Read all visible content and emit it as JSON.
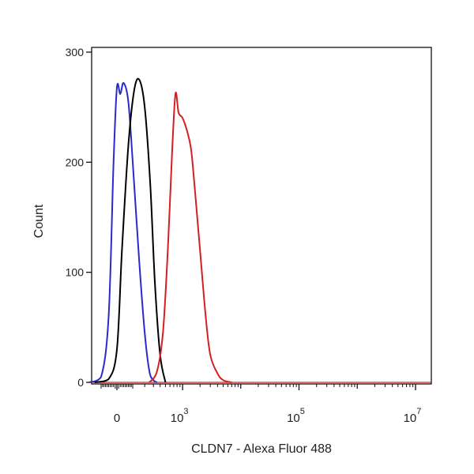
{
  "chart_data": {
    "type": "line",
    "title": "",
    "xlabel": "CLDN7 - Alexa Fluor 488",
    "ylabel": "Count",
    "xscale": "biexponential (log with linear region near 0)",
    "ylim": [
      0,
      300
    ],
    "y_ticks": [
      {
        "value": 0,
        "label": "0"
      },
      {
        "value": 100,
        "label": "100"
      },
      {
        "value": 200,
        "label": "200"
      },
      {
        "value": 300,
        "label": "300"
      }
    ],
    "x_ticks": [
      {
        "value": 0,
        "base": "0",
        "exp": ""
      },
      {
        "value": 1000,
        "base": "10",
        "exp": "3"
      },
      {
        "value": 100000,
        "base": "10",
        "exp": "5"
      },
      {
        "value": 10000000,
        "base": "10",
        "exp": "7"
      }
    ],
    "grid": false,
    "legend": "none",
    "series": [
      {
        "color": "#2a2acf",
        "x": [
          -200,
          -100,
          -50,
          -20,
          0,
          20,
          40,
          70,
          100,
          150,
          200,
          250,
          300,
          350
        ],
        "y": [
          0,
          5,
          60,
          200,
          268,
          262,
          272,
          255,
          200,
          110,
          45,
          10,
          2,
          0
        ]
      },
      {
        "color": "#000000",
        "x": [
          -150,
          -50,
          0,
          30,
          70,
          110,
          150,
          200,
          260,
          320,
          400,
          500
        ],
        "y": [
          0,
          3,
          30,
          120,
          215,
          265,
          275,
          250,
          180,
          90,
          25,
          0
        ]
      },
      {
        "color": "#d42020",
        "x": [
          250,
          350,
          450,
          550,
          650,
          750,
          850,
          1000,
          1200,
          1400,
          1600,
          2000,
          2500,
          3000,
          4000,
          5000,
          7000
        ],
        "y": [
          0,
          10,
          45,
          120,
          205,
          262,
          245,
          240,
          228,
          212,
          180,
          120,
          60,
          25,
          8,
          2,
          0
        ]
      }
    ]
  }
}
